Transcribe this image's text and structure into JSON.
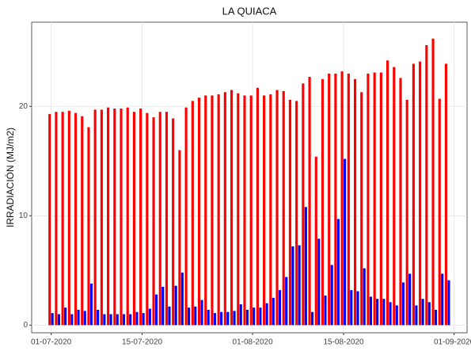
{
  "chart_data": {
    "type": "bar",
    "title": "LA QUIACA",
    "y_label": "IRRADIACIÓN (MJ/m2)",
    "x": [
      "01-07-2020",
      "02-07-2020",
      "03-07-2020",
      "04-07-2020",
      "05-07-2020",
      "06-07-2020",
      "07-07-2020",
      "08-07-2020",
      "09-07-2020",
      "10-07-2020",
      "11-07-2020",
      "12-07-2020",
      "13-07-2020",
      "14-07-2020",
      "15-07-2020",
      "16-07-2020",
      "17-07-2020",
      "18-07-2020",
      "19-07-2020",
      "20-07-2020",
      "21-07-2020",
      "22-07-2020",
      "23-07-2020",
      "24-07-2020",
      "25-07-2020",
      "26-07-2020",
      "27-07-2020",
      "28-07-2020",
      "29-07-2020",
      "30-07-2020",
      "31-07-2020",
      "01-08-2020",
      "02-08-2020",
      "03-08-2020",
      "04-08-2020",
      "05-08-2020",
      "06-08-2020",
      "07-08-2020",
      "08-08-2020",
      "09-08-2020",
      "10-08-2020",
      "11-08-2020",
      "12-08-2020",
      "13-08-2020",
      "14-08-2020",
      "15-08-2020",
      "16-08-2020",
      "17-08-2020",
      "18-08-2020",
      "19-08-2020",
      "20-08-2020",
      "21-08-2020",
      "22-08-2020",
      "23-08-2020",
      "24-08-2020",
      "25-08-2020",
      "26-08-2020",
      "27-08-2020",
      "28-08-2020",
      "29-08-2020",
      "30-08-2020",
      "31-08-2020"
    ],
    "series": [
      {
        "color": "#ff0000",
        "values": [
          19.3,
          19.5,
          19.5,
          19.6,
          19.4,
          19.1,
          18.1,
          19.7,
          19.7,
          19.9,
          19.8,
          19.8,
          19.9,
          19.5,
          19.8,
          19.4,
          19.0,
          19.5,
          19.5,
          18.9,
          16.0,
          19.9,
          20.5,
          20.8,
          21.0,
          21.0,
          21.1,
          21.3,
          21.5,
          21.2,
          21.0,
          21.0,
          21.7,
          21.0,
          21.1,
          21.5,
          21.4,
          20.6,
          20.5,
          22.1,
          22.7,
          15.4,
          22.5,
          23.0,
          23.0,
          23.2,
          23.0,
          22.5,
          21.3,
          23.0,
          23.1,
          23.1,
          24.2,
          23.6,
          22.6,
          20.6,
          23.9,
          24.1,
          25.6,
          26.2,
          20.7,
          23.9
        ]
      },
      {
        "color": "#0000ff",
        "values": [
          1.1,
          1.0,
          1.6,
          1.0,
          1.4,
          1.3,
          3.8,
          1.4,
          1.0,
          1.0,
          1.0,
          1.0,
          1.0,
          1.2,
          1.1,
          1.5,
          2.8,
          3.5,
          1.7,
          3.6,
          4.8,
          1.6,
          1.7,
          2.3,
          1.4,
          1.1,
          1.2,
          1.2,
          1.3,
          1.9,
          1.4,
          1.6,
          1.6,
          2.0,
          2.5,
          3.2,
          4.4,
          7.2,
          7.3,
          10.8,
          1.2,
          7.9,
          2.7,
          5.5,
          9.7,
          15.2,
          3.2,
          3.1,
          5.2,
          2.6,
          2.4,
          2.4,
          2.1,
          1.8,
          3.9,
          4.7,
          1.8,
          2.4,
          2.1,
          1.4,
          4.7,
          4.1
        ]
      }
    ],
    "xlim": [
      "28-06-2020",
      "03-09-2020"
    ],
    "xticks": [
      "01-07-2020",
      "15-07-2020",
      "01-08-2020",
      "15-08-2020",
      "01-09-2020"
    ],
    "ylim": [
      -0.7,
      27.7
    ],
    "yticks": [
      0,
      10,
      20
    ],
    "grid": true
  }
}
